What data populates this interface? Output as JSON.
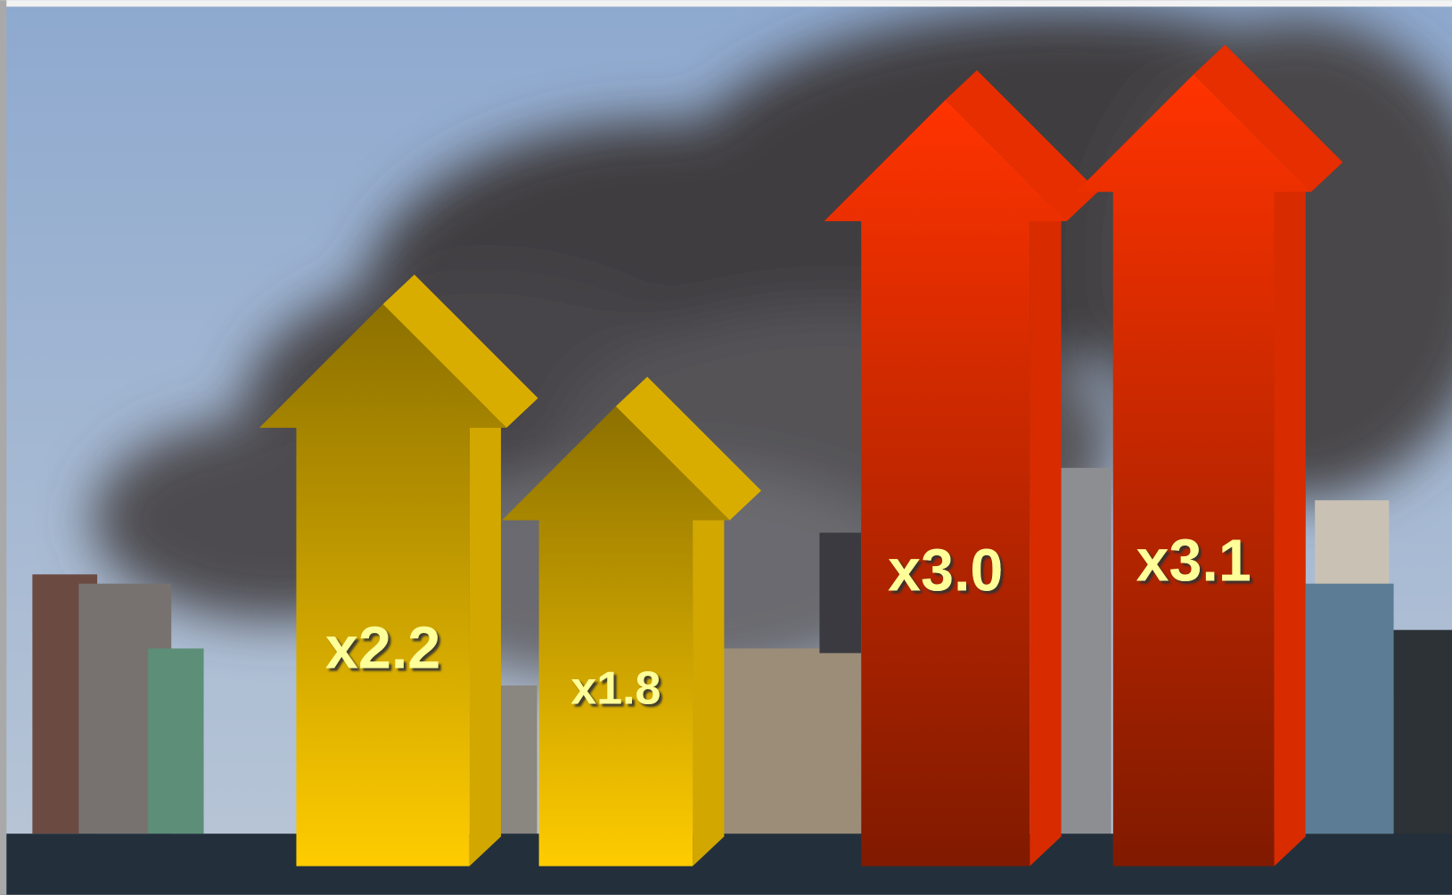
{
  "chart_data": {
    "type": "arrow",
    "categories": [
      null,
      null,
      null,
      null
    ],
    "values": [
      2.2,
      1.8,
      3.0,
      3.1
    ],
    "value_labels": [
      "x2.2",
      "x1.8",
      "x3.0",
      "x3.1"
    ],
    "colors": [
      "#ffcc00",
      "#ffcc00",
      "#ff3300",
      "#ff3300"
    ]
  }
}
